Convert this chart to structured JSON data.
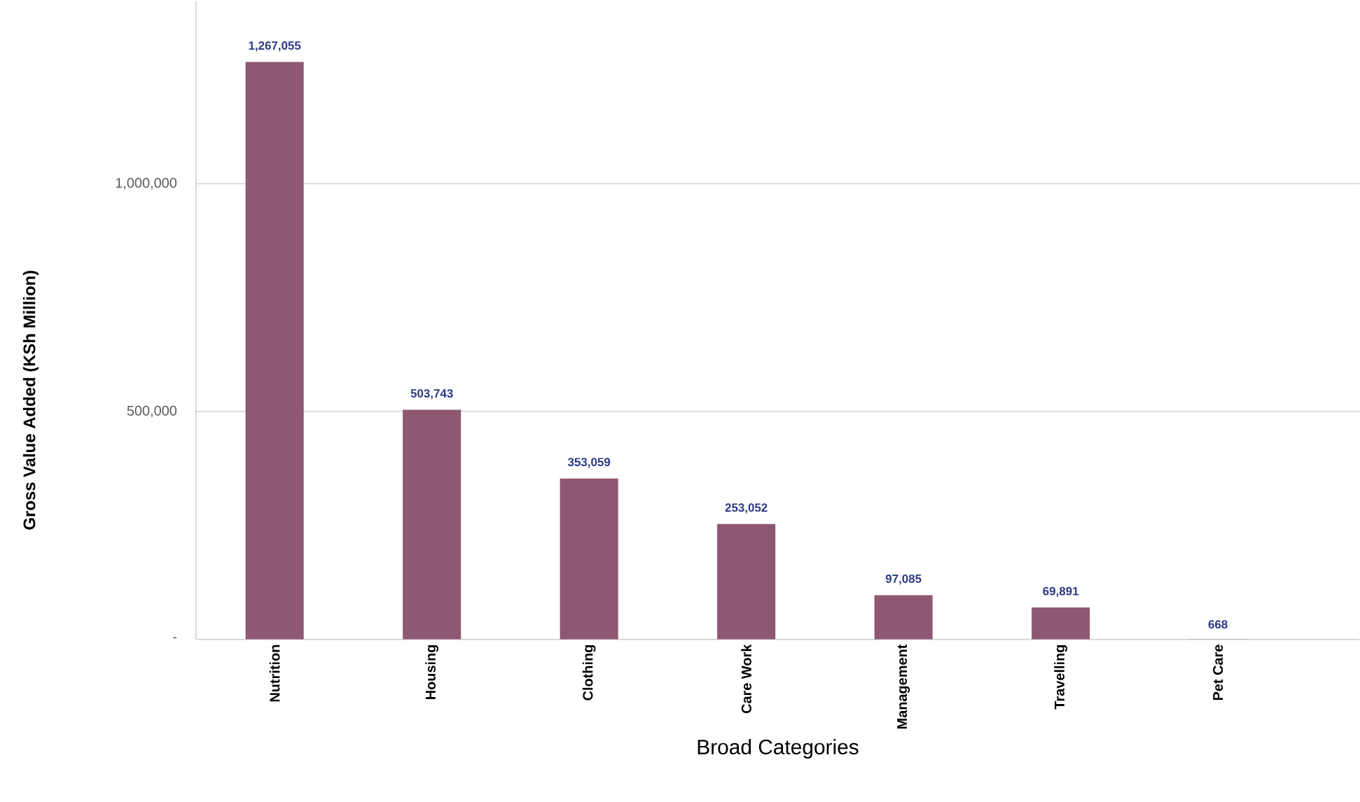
{
  "chart_data": {
    "type": "bar",
    "xlabel": "Broad Categories",
    "ylabel": "Gross Value Added (KSh Million)",
    "categories": [
      "Nutrition",
      "Housing",
      "Clothing",
      "Care Work",
      "Management",
      "Travelling",
      "Pet Care"
    ],
    "values": [
      1267055,
      503743,
      353059,
      253052,
      97085,
      69891,
      668
    ],
    "value_labels": [
      "1,267,055",
      "503,743",
      "353,059",
      "253,052",
      "97,085",
      "69,891",
      "668"
    ],
    "color": "#8e5872",
    "ylim": [
      0,
      1400000
    ],
    "yticks": [
      {
        "value": 0,
        "label": "-"
      },
      {
        "value": 500000,
        "label": "500,000"
      },
      {
        "value": 1000000,
        "label": "1,000,000"
      }
    ],
    "grid": "y"
  }
}
